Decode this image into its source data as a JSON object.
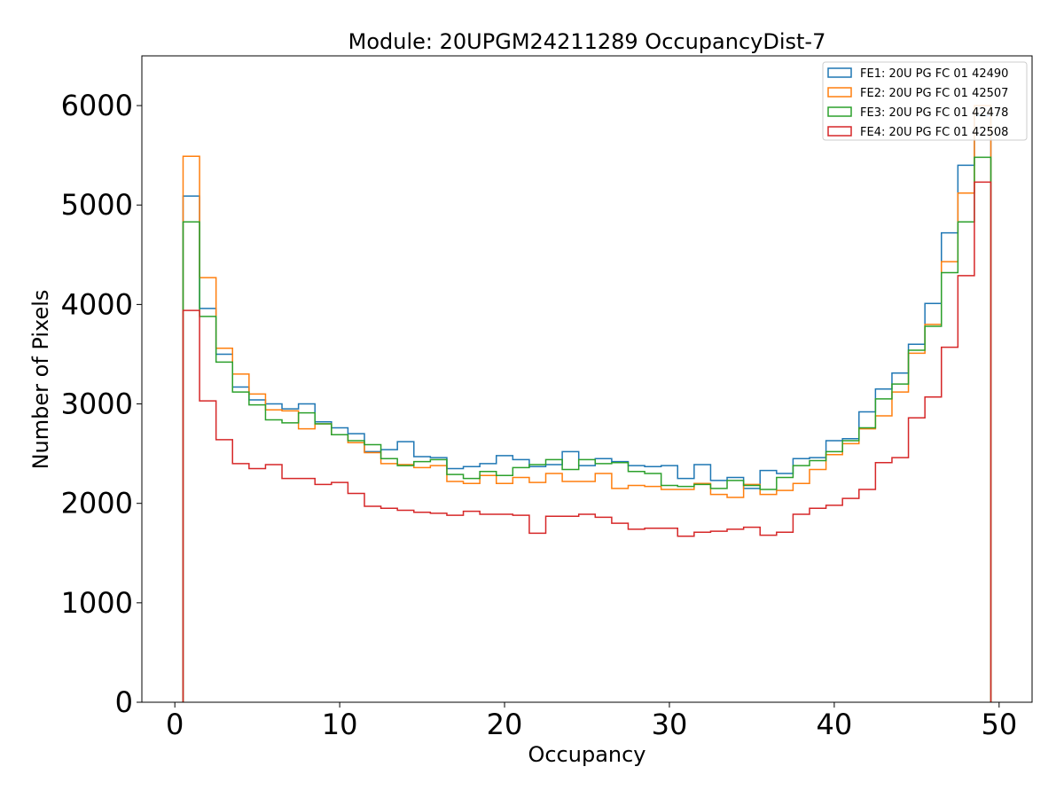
{
  "chart_data": {
    "type": "step-histogram",
    "title": "Module: 20UPGM24211289 OccupancyDist-7",
    "xlabel": "Occupancy",
    "ylabel": "Number of Pixels",
    "xlim": [
      -2,
      52
    ],
    "ylim": [
      0,
      6500
    ],
    "xticks": [
      0,
      10,
      20,
      30,
      40,
      50
    ],
    "yticks": [
      0,
      1000,
      2000,
      3000,
      4000,
      5000,
      6000
    ],
    "bin_start": 0.5,
    "bin_width": 1,
    "legend_position": "top-right",
    "series": [
      {
        "name": "FE1: 20U PG FC 01 42490",
        "color": "#1f77b4",
        "values": [
          5090,
          3960,
          3500,
          3170,
          3040,
          3000,
          2950,
          3000,
          2820,
          2760,
          2700,
          2520,
          2540,
          2620,
          2470,
          2460,
          2350,
          2370,
          2400,
          2480,
          2440,
          2370,
          2390,
          2520,
          2380,
          2450,
          2420,
          2380,
          2370,
          2380,
          2250,
          2390,
          2230,
          2260,
          2150,
          2330,
          2300,
          2450,
          2460,
          2630,
          2650,
          2920,
          3150,
          3310,
          3600,
          4010,
          4720,
          5400,
          5900
        ]
      },
      {
        "name": "FE2: 20U PG FC 01 42507",
        "color": "#ff7f0e",
        "values": [
          5490,
          4270,
          3560,
          3300,
          3100,
          2940,
          2930,
          2750,
          2800,
          2690,
          2610,
          2510,
          2400,
          2390,
          2360,
          2380,
          2220,
          2200,
          2280,
          2200,
          2260,
          2210,
          2300,
          2220,
          2220,
          2300,
          2150,
          2180,
          2170,
          2140,
          2140,
          2200,
          2090,
          2060,
          2190,
          2090,
          2130,
          2200,
          2340,
          2490,
          2600,
          2750,
          2880,
          3120,
          3510,
          3800,
          4430,
          5120,
          6000
        ]
      },
      {
        "name": "FE3: 20U PG FC 01 42478",
        "color": "#2ca02c",
        "values": [
          4830,
          3880,
          3420,
          3120,
          2990,
          2840,
          2810,
          2910,
          2800,
          2690,
          2630,
          2590,
          2450,
          2380,
          2420,
          2440,
          2290,
          2250,
          2320,
          2280,
          2360,
          2390,
          2440,
          2340,
          2440,
          2400,
          2410,
          2320,
          2300,
          2180,
          2170,
          2190,
          2150,
          2230,
          2180,
          2140,
          2260,
          2380,
          2430,
          2520,
          2630,
          2760,
          3050,
          3200,
          3540,
          3780,
          4320,
          4830,
          5480
        ]
      },
      {
        "name": "FE4: 20U PG FC 01 42508",
        "color": "#d62728",
        "values": [
          3940,
          3030,
          2640,
          2400,
          2350,
          2390,
          2250,
          2250,
          2190,
          2210,
          2100,
          1970,
          1950,
          1930,
          1910,
          1900,
          1880,
          1920,
          1890,
          1890,
          1880,
          1700,
          1870,
          1870,
          1890,
          1860,
          1800,
          1740,
          1750,
          1750,
          1670,
          1710,
          1720,
          1740,
          1760,
          1680,
          1710,
          1890,
          1950,
          1980,
          2050,
          2140,
          2410,
          2460,
          2860,
          3070,
          3570,
          4290,
          5230
        ]
      }
    ]
  }
}
